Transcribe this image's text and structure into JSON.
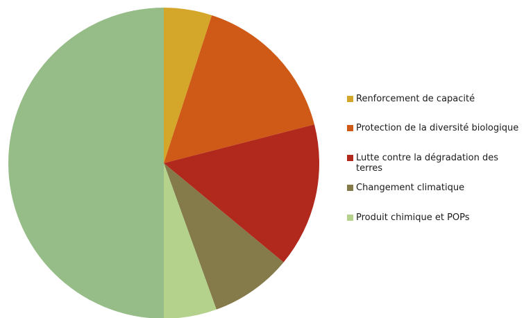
{
  "chart_data": {
    "type": "pie",
    "title": "",
    "categories": [
      "Renforcement de capacité",
      "Protection de la diversité biologique",
      "Lutte contre la dégradation des terres",
      "Changement climatique",
      "Produit chimique et POPs",
      ""
    ],
    "values": [
      5,
      16,
      15,
      8.5,
      5.5,
      50
    ],
    "colors": [
      "#D4A62A",
      "#CF5A17",
      "#B0291C",
      "#857A4A",
      "#B4D28C",
      "#96BC88"
    ],
    "legend": "right",
    "start_angle_deg": 0,
    "direction": "clockwise"
  },
  "legend": {
    "items": [
      {
        "label": "Renforcement de capacité",
        "color": "#D4A62A"
      },
      {
        "label": "Protection de la diversité biologique",
        "color": "#CF5A17"
      },
      {
        "label": "Lutte contre la dégradation des terres",
        "color": "#B0291C"
      },
      {
        "label": "Changement climatique",
        "color": "#857A4A"
      },
      {
        "label": "Produit chimique et POPs",
        "color": "#B4D28C"
      }
    ]
  }
}
